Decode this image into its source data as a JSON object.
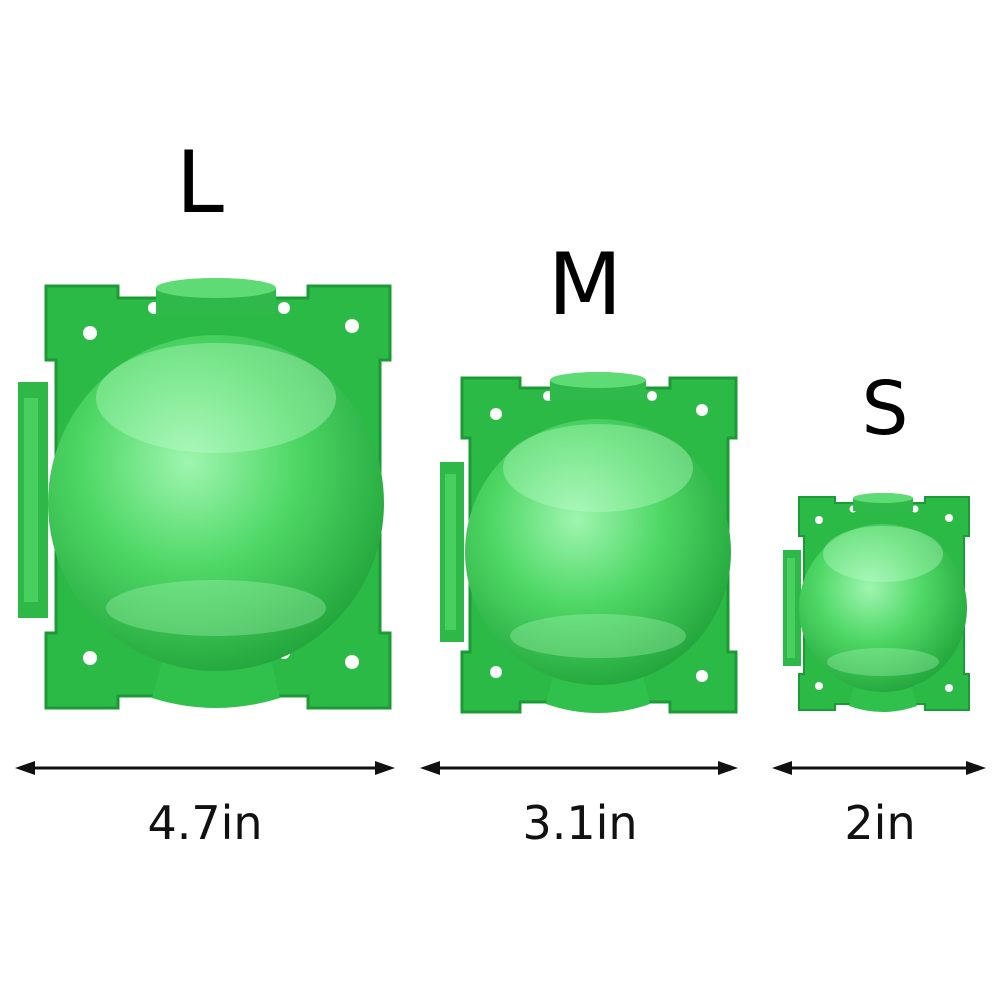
{
  "sizes": [
    {
      "label": "L",
      "dimension": "4.7in"
    },
    {
      "label": "M",
      "dimension": "3.1in"
    },
    {
      "label": "S",
      "dimension": "2in"
    }
  ],
  "colors": {
    "plastic_dark": "#1fa83a",
    "plastic_mid": "#3cc955",
    "plastic_light": "#8df0a0",
    "text": "#000000",
    "arrow": "#111111"
  }
}
